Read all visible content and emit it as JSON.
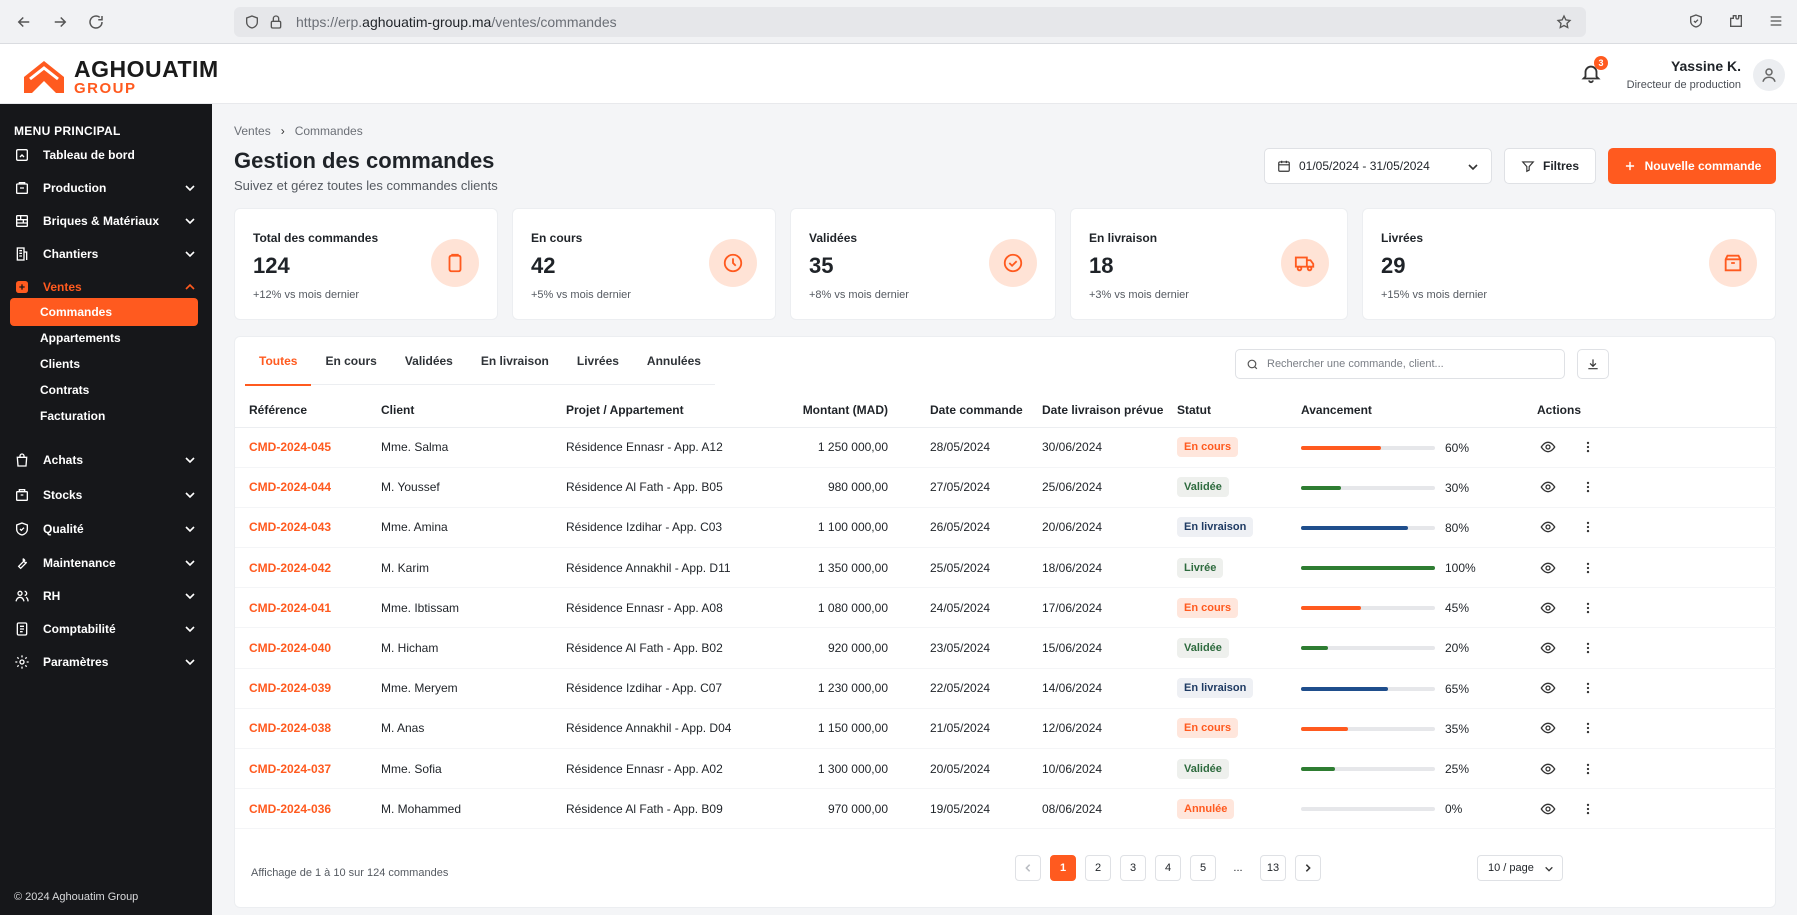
{
  "browser": {
    "url_prefix": "https://erp.",
    "url_domain": "aghouatim-group.ma",
    "url_path": "/ventes/commandes"
  },
  "header": {
    "logo_main": "AGHOUATIM",
    "logo_sub": "GROUP",
    "notifications_count": "3",
    "user_name": "Yassine K.",
    "user_role": "Directeur de production"
  },
  "sidebar": {
    "menu_title": "MENU PRINCIPAL",
    "items": [
      {
        "label": "Tableau de bord",
        "icon": "dashboard-icon"
      },
      {
        "label": "Production",
        "icon": "factory-icon"
      },
      {
        "label": "Briques & Matériaux",
        "icon": "bricks-icon"
      },
      {
        "label": "Chantiers",
        "icon": "building-icon"
      },
      {
        "label": "Ventes",
        "icon": "sales-icon"
      },
      {
        "label": "Achats",
        "icon": "shopping-bag-icon"
      },
      {
        "label": "Stocks",
        "icon": "box-icon"
      },
      {
        "label": "Qualité",
        "icon": "shield-check-icon"
      },
      {
        "label": "Maintenance",
        "icon": "wrench-icon"
      },
      {
        "label": "RH",
        "icon": "users-icon"
      },
      {
        "label": "Comptabilité",
        "icon": "ledger-icon"
      },
      {
        "label": "Paramètres",
        "icon": "gear-icon"
      }
    ],
    "sub_items": [
      "Commandes",
      "Appartements",
      "Clients",
      "Contrats",
      "Facturation"
    ],
    "copyright": "© 2024 Aghouatim Group"
  },
  "page": {
    "breadcrumb": [
      "Ventes",
      "Commandes"
    ],
    "title": "Gestion des commandes",
    "subtitle": "Suivez et gérez toutes les commandes clients",
    "date_range": "01/05/2024 - 31/05/2024",
    "filters_label": "Filtres",
    "new_order_label": "Nouvelle commande"
  },
  "stats": [
    {
      "label": "Total des commandes",
      "value": "124",
      "trend": "+12% vs mois dernier",
      "icon": "clipboard-icon"
    },
    {
      "label": "En cours",
      "value": "42",
      "trend": "+5% vs mois dernier",
      "icon": "clock-icon"
    },
    {
      "label": "Validées",
      "value": "35",
      "trend": "+8% vs mois dernier",
      "icon": "check-circle-icon"
    },
    {
      "label": "En livraison",
      "value": "18",
      "trend": "+3% vs mois dernier",
      "icon": "truck-icon"
    },
    {
      "label": "Livrées",
      "value": "29",
      "trend": "+15% vs mois dernier",
      "icon": "package-icon"
    }
  ],
  "tabs": [
    "Toutes",
    "En cours",
    "Validées",
    "En livraison",
    "Livrées",
    "Annulées"
  ],
  "search": {
    "placeholder": "Rechercher une commande, client..."
  },
  "table": {
    "headers": [
      "Référence",
      "Client",
      "Projet / Appartement",
      "Montant (MAD)",
      "Date commande",
      "Date livraison prévue",
      "Statut",
      "Avancement",
      "Actions"
    ],
    "rows": [
      {
        "ref": "CMD-2024-045",
        "client": "Mme. Salma",
        "projet": "Résidence Ennasr - App. A12",
        "montant": "1 250 000,00",
        "date_cmd": "28/05/2024",
        "date_liv": "30/06/2024",
        "statut": "En cours",
        "statut_class": "encours",
        "progress": 60,
        "progress_label": "60%",
        "bar_color": "#ff5a1f"
      },
      {
        "ref": "CMD-2024-044",
        "client": "M. Youssef",
        "projet": "Résidence Al Fath - App. B05",
        "montant": "980 000,00",
        "date_cmd": "27/05/2024",
        "date_liv": "25/06/2024",
        "statut": "Validée",
        "statut_class": "validee",
        "progress": 30,
        "progress_label": "30%",
        "bar_color": "#2e7d32"
      },
      {
        "ref": "CMD-2024-043",
        "client": "Mme. Amina",
        "projet": "Résidence Izdihar - App. C03",
        "montant": "1 100 000,00",
        "date_cmd": "26/05/2024",
        "date_liv": "20/06/2024",
        "statut": "En livraison",
        "statut_class": "livraison",
        "progress": 80,
        "progress_label": "80%",
        "bar_color": "#1f4e8c"
      },
      {
        "ref": "CMD-2024-042",
        "client": "M. Karim",
        "projet": "Résidence Annakhil - App. D11",
        "montant": "1 350 000,00",
        "date_cmd": "25/05/2024",
        "date_liv": "18/06/2024",
        "statut": "Livrée",
        "statut_class": "livree",
        "progress": 100,
        "progress_label": "100%",
        "bar_color": "#2e7d32"
      },
      {
        "ref": "CMD-2024-041",
        "client": "Mme. Ibtissam",
        "projet": "Résidence Ennasr - App. A08",
        "montant": "1 080 000,00",
        "date_cmd": "24/05/2024",
        "date_liv": "17/06/2024",
        "statut": "En cours",
        "statut_class": "encours",
        "progress": 45,
        "progress_label": "45%",
        "bar_color": "#ff5a1f"
      },
      {
        "ref": "CMD-2024-040",
        "client": "M. Hicham",
        "projet": "Résidence Al Fath - App. B02",
        "montant": "920 000,00",
        "date_cmd": "23/05/2024",
        "date_liv": "15/06/2024",
        "statut": "Validée",
        "statut_class": "validee",
        "progress": 20,
        "progress_label": "20%",
        "bar_color": "#2e7d32"
      },
      {
        "ref": "CMD-2024-039",
        "client": "Mme. Meryem",
        "projet": "Résidence Izdihar - App. C07",
        "montant": "1 230 000,00",
        "date_cmd": "22/05/2024",
        "date_liv": "14/06/2024",
        "statut": "En livraison",
        "statut_class": "livraison",
        "progress": 65,
        "progress_label": "65%",
        "bar_color": "#1f4e8c"
      },
      {
        "ref": "CMD-2024-038",
        "client": "M. Anas",
        "projet": "Résidence Annakhil - App. D04",
        "montant": "1 150 000,00",
        "date_cmd": "21/05/2024",
        "date_liv": "12/06/2024",
        "statut": "En cours",
        "statut_class": "encours",
        "progress": 35,
        "progress_label": "35%",
        "bar_color": "#ff5a1f"
      },
      {
        "ref": "CMD-2024-037",
        "client": "Mme. Sofia",
        "projet": "Résidence Ennasr - App. A02",
        "montant": "1 300 000,00",
        "date_cmd": "20/05/2024",
        "date_liv": "10/06/2024",
        "statut": "Validée",
        "statut_class": "validee",
        "progress": 25,
        "progress_label": "25%",
        "bar_color": "#2e7d32"
      },
      {
        "ref": "CMD-2024-036",
        "client": "M. Mohammed",
        "projet": "Résidence Al Fath - App. B09",
        "montant": "970 000,00",
        "date_cmd": "19/05/2024",
        "date_liv": "08/06/2024",
        "statut": "Annulée",
        "statut_class": "annulee",
        "progress": 0,
        "progress_label": "0%",
        "bar_color": "#ff5a1f"
      }
    ]
  },
  "footer": {
    "info": "Affichage de 1 à 10 sur 124 commandes",
    "pages": [
      "1",
      "2",
      "3",
      "4",
      "5",
      "...",
      "13"
    ],
    "per_page": "10 / page"
  },
  "colors": {
    "accent": "#ff5a1f",
    "sidebar_bg": "#16171a"
  }
}
